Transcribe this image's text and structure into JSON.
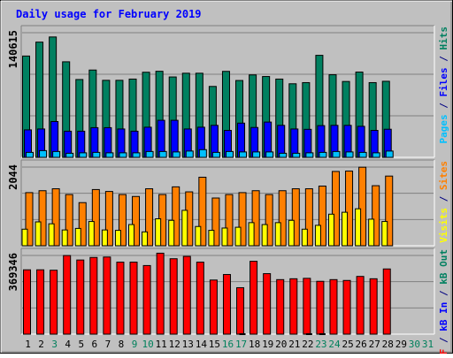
{
  "title": "Daily usage for February 2019",
  "chart_data": [
    {
      "type": "bar",
      "panel": "hits-files-pages",
      "ymax_label": "140615",
      "ylim": [
        0,
        140615
      ],
      "categories": [
        "1",
        "2",
        "3",
        "4",
        "5",
        "6",
        "7",
        "8",
        "9",
        "10",
        "11",
        "12",
        "13",
        "14",
        "15",
        "16",
        "17",
        "18",
        "19",
        "20",
        "21",
        "22",
        "23",
        "24",
        "25",
        "26",
        "27",
        "28",
        "29",
        "30",
        "31"
      ],
      "right_label": [
        {
          "text": "Pages",
          "color": "#00c0ff"
        },
        {
          "text": " / ",
          "color": "#000080"
        },
        {
          "text": "Files",
          "color": "#0000ff"
        },
        {
          "text": " / ",
          "color": "#000080"
        },
        {
          "text": "Hits",
          "color": "#008060"
        }
      ],
      "series": [
        {
          "name": "Hits",
          "color": "#008060",
          "values": [
            114300,
            130000,
            135800,
            107800,
            87800,
            98500,
            86900,
            86900,
            88300,
            96000,
            97100,
            90700,
            94900,
            94900,
            80000,
            97000,
            86700,
            93000,
            91200,
            88300,
            83000,
            84300,
            115100,
            93200,
            85600,
            96200,
            84300,
            85800,
            null,
            null,
            null
          ]
        },
        {
          "name": "Files",
          "color": "#0000ff",
          "values": [
            31000,
            32000,
            40400,
            29500,
            29500,
            33500,
            33500,
            32000,
            29500,
            34000,
            41800,
            41800,
            32000,
            34000,
            36100,
            30400,
            38600,
            33700,
            39800,
            36100,
            32000,
            31600,
            35800,
            36100,
            36100,
            35000,
            30400,
            31700,
            null,
            null,
            null
          ]
        },
        {
          "name": "Pages",
          "color": "#00c0ff",
          "values": [
            5600,
            7600,
            6600,
            4600,
            5100,
            5600,
            5100,
            5100,
            5100,
            6600,
            6600,
            6100,
            7100,
            8700,
            5600,
            6600,
            6100,
            6100,
            6100,
            4600,
            4600,
            5100,
            5600,
            6600,
            6100,
            5600,
            5100,
            7100,
            null,
            null,
            null
          ]
        }
      ]
    },
    {
      "type": "bar",
      "panel": "visits-sites",
      "ymax_label": "2044",
      "ylim": [
        0,
        2044
      ],
      "right_label": [
        {
          "text": "Visits",
          "color": "#ffff00"
        },
        {
          "text": " / ",
          "color": "#000080"
        },
        {
          "text": "Sites",
          "color": "#ff8000"
        }
      ],
      "series": [
        {
          "name": "Sites",
          "color": "#ff8000",
          "values": [
            1380,
            1430,
            1480,
            1330,
            1120,
            1460,
            1410,
            1330,
            1280,
            1480,
            1330,
            1530,
            1400,
            1780,
            1240,
            1330,
            1380,
            1430,
            1330,
            1430,
            1480,
            1480,
            1550,
            1930,
            1940,
            2040,
            1560,
            1810,
            null,
            null,
            null
          ]
        },
        {
          "name": "Visits",
          "color": "#ffff00",
          "values": [
            430,
            620,
            570,
            410,
            450,
            630,
            410,
            400,
            550,
            360,
            700,
            660,
            920,
            500,
            400,
            460,
            480,
            600,
            550,
            600,
            660,
            430,
            530,
            820,
            870,
            960,
            690,
            630,
            null,
            null,
            null
          ]
        }
      ]
    },
    {
      "type": "bar",
      "panel": "kbytes",
      "ymax_label": "369346",
      "ylim": [
        0,
        369346
      ],
      "right_label": [
        {
          "text": "kB F",
          "color": "#ff0000"
        },
        {
          "text": " / ",
          "color": "#000080"
        },
        {
          "text": "kB In",
          "color": "#0000ff"
        },
        {
          "text": " / ",
          "color": "#000080"
        },
        {
          "text": "kB Out",
          "color": "#008060"
        }
      ],
      "series": [
        {
          "name": "kB F",
          "color": "#ff0000",
          "values": [
            302000,
            302000,
            300000,
            369000,
            348000,
            360000,
            362000,
            338000,
            338000,
            322000,
            380000,
            354000,
            365000,
            338000,
            254000,
            280000,
            218000,
            342000,
            284000,
            256000,
            260000,
            262000,
            248000,
            256000,
            252000,
            271000,
            260000,
            306000,
            null,
            null,
            null
          ]
        },
        {
          "name": "kB In",
          "color": "#0000ff",
          "values": [
            0,
            0,
            0,
            0,
            0,
            0,
            0,
            0,
            0,
            0,
            0,
            0,
            0,
            0,
            0,
            0,
            0,
            0,
            0,
            0,
            0,
            0,
            0,
            0,
            0,
            0,
            0,
            0,
            null,
            null,
            null
          ]
        },
        {
          "name": "kB Out",
          "color": "#008060",
          "values": [
            0,
            0,
            0,
            0,
            0,
            0,
            0,
            0,
            0,
            0,
            0,
            0,
            0,
            0,
            0,
            0,
            2000,
            0,
            0,
            0,
            0,
            2000,
            2000,
            0,
            0,
            0,
            0,
            0,
            null,
            null,
            null
          ]
        }
      ]
    }
  ],
  "day_label_colors": {
    "weekday": "#000000",
    "weekend": "#00805c"
  },
  "weekend_days": [
    3,
    9,
    10,
    16,
    17,
    23,
    24,
    30,
    31
  ]
}
